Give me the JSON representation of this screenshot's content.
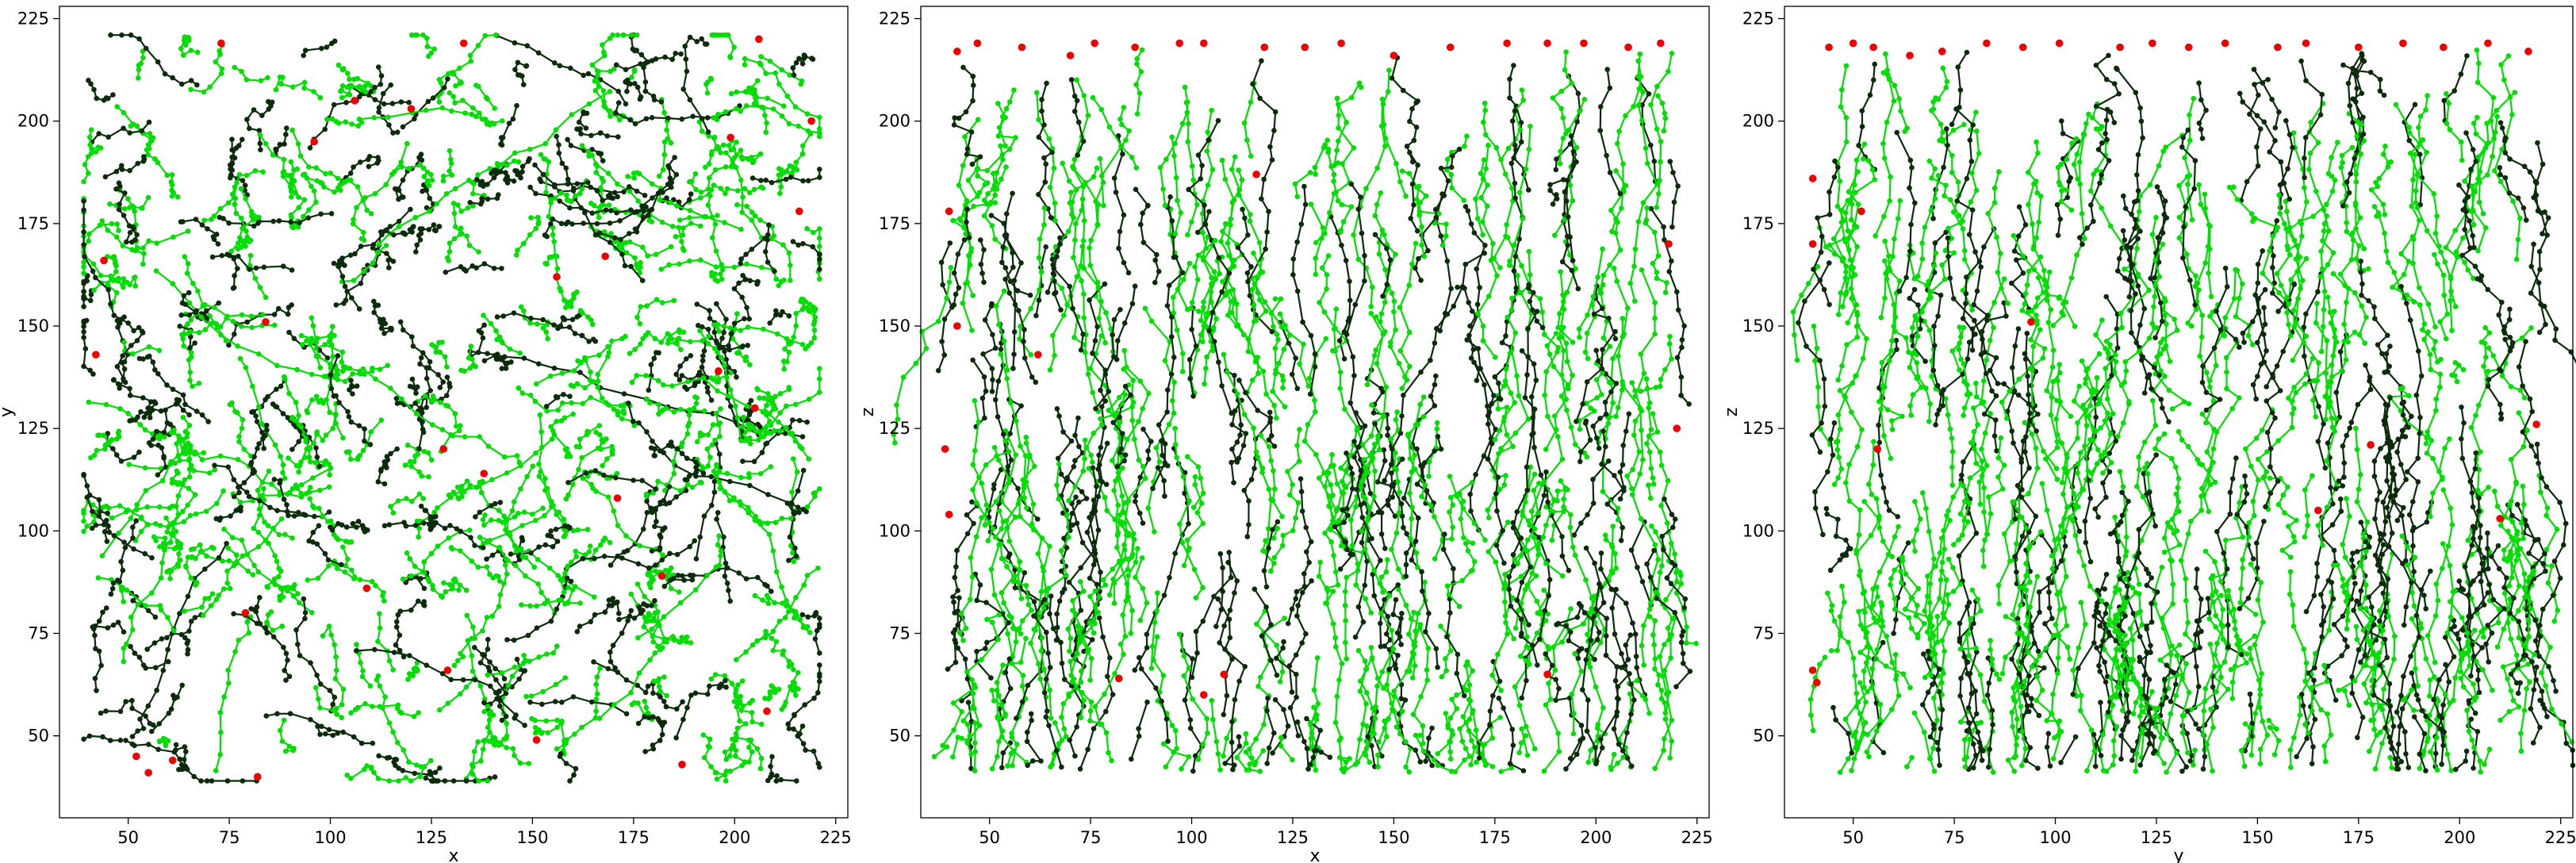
{
  "colors": {
    "track_green": "#00dd00",
    "track_dark": "#0b2b0b",
    "endpoint": "#ee0000",
    "axes": "#000000"
  },
  "chart_data": [
    {
      "type": "scatter",
      "subtype": "trajectory-projection",
      "title": "",
      "xlabel": "x",
      "ylabel": "y",
      "xlim": [
        33,
        228
      ],
      "ylim": [
        30,
        228
      ],
      "xticks": [
        50,
        75,
        100,
        125,
        150,
        175,
        200,
        225
      ],
      "yticks": [
        50,
        75,
        100,
        125,
        150,
        175,
        200,
        225
      ],
      "grid": false,
      "legend": "none",
      "pattern": "isotropic",
      "tracks_shown": 420,
      "red_endpoints_sample": [
        [
          52,
          45
        ],
        [
          55,
          41
        ],
        [
          73,
          219
        ],
        [
          82,
          40
        ],
        [
          96,
          195
        ],
        [
          106,
          205
        ],
        [
          109,
          86
        ],
        [
          120,
          203
        ],
        [
          129,
          66
        ],
        [
          133,
          219
        ],
        [
          156,
          162
        ],
        [
          168,
          167
        ],
        [
          182,
          89
        ],
        [
          199,
          196
        ],
        [
          206,
          220
        ],
        [
          208,
          56
        ],
        [
          216,
          178
        ],
        [
          219,
          200
        ],
        [
          44,
          166
        ],
        [
          42,
          143
        ],
        [
          61,
          44
        ],
        [
          79,
          80
        ],
        [
          84,
          151
        ],
        [
          128,
          120
        ],
        [
          138,
          114
        ],
        [
          151,
          49
        ],
        [
          171,
          108
        ],
        [
          187,
          43
        ],
        [
          196,
          139
        ],
        [
          205,
          130
        ]
      ]
    },
    {
      "type": "scatter",
      "subtype": "trajectory-projection",
      "title": "",
      "xlabel": "x",
      "ylabel": "z",
      "xlim": [
        33,
        228
      ],
      "ylim": [
        30,
        228
      ],
      "xticks": [
        50,
        75,
        100,
        125,
        150,
        175,
        200,
        225
      ],
      "yticks": [
        50,
        75,
        100,
        125,
        150,
        175,
        200,
        225
      ],
      "grid": false,
      "legend": "none",
      "pattern": "descending",
      "tracks_shown": 380,
      "red_endpoints_sample": [
        [
          42,
          217
        ],
        [
          47,
          219
        ],
        [
          58,
          218
        ],
        [
          70,
          216
        ],
        [
          76,
          219
        ],
        [
          86,
          218
        ],
        [
          97,
          219
        ],
        [
          103,
          219
        ],
        [
          118,
          218
        ],
        [
          128,
          218
        ],
        [
          137,
          219
        ],
        [
          150,
          216
        ],
        [
          164,
          218
        ],
        [
          178,
          219
        ],
        [
          188,
          219
        ],
        [
          197,
          219
        ],
        [
          208,
          218
        ],
        [
          216,
          219
        ],
        [
          40,
          178
        ],
        [
          42,
          150
        ],
        [
          39,
          120
        ],
        [
          40,
          104
        ],
        [
          62,
          143
        ],
        [
          82,
          64
        ],
        [
          103,
          60
        ],
        [
          108,
          65
        ],
        [
          116,
          187
        ],
        [
          188,
          65
        ],
        [
          218,
          170
        ],
        [
          220,
          125
        ]
      ]
    },
    {
      "type": "scatter",
      "subtype": "trajectory-projection",
      "title": "",
      "xlabel": "y",
      "ylabel": "z",
      "xlim": [
        33,
        228
      ],
      "ylim": [
        30,
        228
      ],
      "xticks": [
        50,
        75,
        100,
        125,
        150,
        175,
        200,
        225
      ],
      "yticks": [
        50,
        75,
        100,
        125,
        150,
        175,
        200,
        225
      ],
      "grid": false,
      "legend": "none",
      "pattern": "descending",
      "tracks_shown": 380,
      "red_endpoints_sample": [
        [
          44,
          218
        ],
        [
          50,
          219
        ],
        [
          55,
          218
        ],
        [
          64,
          216
        ],
        [
          72,
          217
        ],
        [
          83,
          219
        ],
        [
          92,
          218
        ],
        [
          101,
          219
        ],
        [
          116,
          218
        ],
        [
          124,
          219
        ],
        [
          133,
          218
        ],
        [
          142,
          219
        ],
        [
          155,
          218
        ],
        [
          162,
          219
        ],
        [
          175,
          218
        ],
        [
          186,
          219
        ],
        [
          196,
          218
        ],
        [
          207,
          219
        ],
        [
          217,
          217
        ],
        [
          40,
          186
        ],
        [
          40,
          170
        ],
        [
          52,
          178
        ],
        [
          56,
          120
        ],
        [
          41,
          63
        ],
        [
          40,
          66
        ],
        [
          94,
          151
        ],
        [
          165,
          105
        ],
        [
          178,
          121
        ],
        [
          210,
          103
        ],
        [
          219,
          126
        ]
      ]
    }
  ]
}
